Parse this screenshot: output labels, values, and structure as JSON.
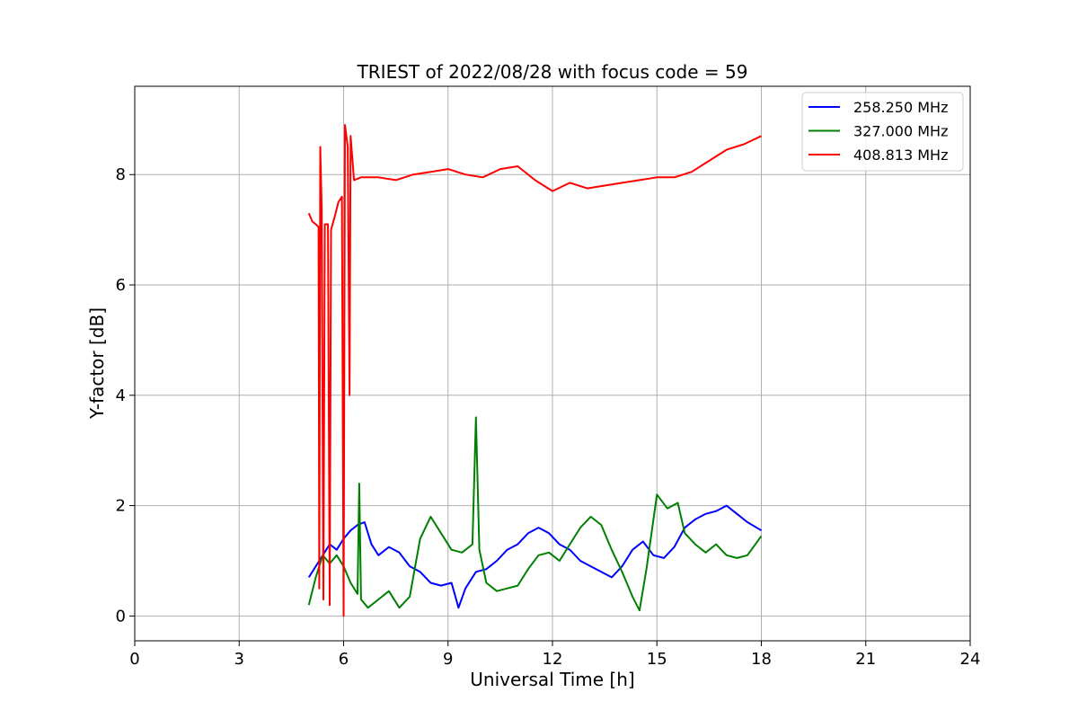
{
  "chart_data": {
    "type": "line",
    "title": "TRIEST of 2022/08/28 with focus code = 59",
    "xlabel": "Universal Time [h]",
    "ylabel": "Y-factor [dB]",
    "xlim": [
      0,
      24
    ],
    "ylim": [
      -0.45,
      9.6
    ],
    "xticks": [
      0,
      3,
      6,
      9,
      12,
      15,
      18,
      21,
      24
    ],
    "yticks": [
      0,
      2,
      4,
      6,
      8
    ],
    "grid": true,
    "legend_position": "top-right",
    "series": [
      {
        "name": "258.250 MHz",
        "color": "#0000ff",
        "points": [
          [
            5.0,
            0.7
          ],
          [
            5.2,
            0.9
          ],
          [
            5.4,
            1.1
          ],
          [
            5.6,
            1.3
          ],
          [
            5.8,
            1.2
          ],
          [
            6.0,
            1.4
          ],
          [
            6.2,
            1.55
          ],
          [
            6.4,
            1.65
          ],
          [
            6.6,
            1.7
          ],
          [
            6.8,
            1.3
          ],
          [
            7.0,
            1.1
          ],
          [
            7.3,
            1.25
          ],
          [
            7.6,
            1.15
          ],
          [
            7.9,
            0.9
          ],
          [
            8.2,
            0.8
          ],
          [
            8.5,
            0.6
          ],
          [
            8.8,
            0.55
          ],
          [
            9.1,
            0.6
          ],
          [
            9.3,
            0.15
          ],
          [
            9.5,
            0.5
          ],
          [
            9.8,
            0.8
          ],
          [
            10.1,
            0.85
          ],
          [
            10.4,
            1.0
          ],
          [
            10.7,
            1.2
          ],
          [
            11.0,
            1.3
          ],
          [
            11.3,
            1.5
          ],
          [
            11.6,
            1.6
          ],
          [
            11.9,
            1.5
          ],
          [
            12.2,
            1.3
          ],
          [
            12.5,
            1.2
          ],
          [
            12.8,
            1.0
          ],
          [
            13.1,
            0.9
          ],
          [
            13.4,
            0.8
          ],
          [
            13.7,
            0.7
          ],
          [
            14.0,
            0.9
          ],
          [
            14.3,
            1.2
          ],
          [
            14.6,
            1.35
          ],
          [
            14.9,
            1.1
          ],
          [
            15.2,
            1.05
          ],
          [
            15.5,
            1.25
          ],
          [
            15.8,
            1.6
          ],
          [
            16.1,
            1.75
          ],
          [
            16.4,
            1.85
          ],
          [
            16.7,
            1.9
          ],
          [
            17.0,
            2.0
          ],
          [
            17.3,
            1.85
          ],
          [
            17.6,
            1.7
          ],
          [
            18.0,
            1.55
          ]
        ]
      },
      {
        "name": "327.000 MHz",
        "color": "#008000",
        "points": [
          [
            5.0,
            0.2
          ],
          [
            5.2,
            0.7
          ],
          [
            5.4,
            1.1
          ],
          [
            5.6,
            0.95
          ],
          [
            5.8,
            1.1
          ],
          [
            6.0,
            0.9
          ],
          [
            6.2,
            0.6
          ],
          [
            6.4,
            0.4
          ],
          [
            6.45,
            2.4
          ],
          [
            6.5,
            0.3
          ],
          [
            6.7,
            0.15
          ],
          [
            7.0,
            0.3
          ],
          [
            7.3,
            0.45
          ],
          [
            7.6,
            0.15
          ],
          [
            7.9,
            0.35
          ],
          [
            8.2,
            1.4
          ],
          [
            8.5,
            1.8
          ],
          [
            8.8,
            1.5
          ],
          [
            9.1,
            1.2
          ],
          [
            9.4,
            1.15
          ],
          [
            9.7,
            1.3
          ],
          [
            9.8,
            3.6
          ],
          [
            9.9,
            1.2
          ],
          [
            10.1,
            0.6
          ],
          [
            10.4,
            0.45
          ],
          [
            10.7,
            0.5
          ],
          [
            11.0,
            0.55
          ],
          [
            11.3,
            0.85
          ],
          [
            11.6,
            1.1
          ],
          [
            11.9,
            1.15
          ],
          [
            12.2,
            1.0
          ],
          [
            12.5,
            1.3
          ],
          [
            12.8,
            1.6
          ],
          [
            13.1,
            1.8
          ],
          [
            13.4,
            1.65
          ],
          [
            13.7,
            1.2
          ],
          [
            14.0,
            0.8
          ],
          [
            14.3,
            0.35
          ],
          [
            14.5,
            0.1
          ],
          [
            14.7,
            0.85
          ],
          [
            15.0,
            2.2
          ],
          [
            15.3,
            1.95
          ],
          [
            15.6,
            2.05
          ],
          [
            15.8,
            1.5
          ],
          [
            16.1,
            1.3
          ],
          [
            16.4,
            1.15
          ],
          [
            16.7,
            1.3
          ],
          [
            17.0,
            1.1
          ],
          [
            17.3,
            1.05
          ],
          [
            17.6,
            1.1
          ],
          [
            18.0,
            1.45
          ]
        ]
      },
      {
        "name": "408.813 MHz",
        "color": "#ff0000",
        "points": [
          [
            5.0,
            7.3
          ],
          [
            5.1,
            7.15
          ],
          [
            5.2,
            7.1
          ],
          [
            5.28,
            7.05
          ],
          [
            5.3,
            0.5
          ],
          [
            5.33,
            8.5
          ],
          [
            5.37,
            7.4
          ],
          [
            5.42,
            0.3
          ],
          [
            5.46,
            7.1
          ],
          [
            5.55,
            7.1
          ],
          [
            5.6,
            0.2
          ],
          [
            5.64,
            7.0
          ],
          [
            5.75,
            7.25
          ],
          [
            5.85,
            7.5
          ],
          [
            5.95,
            7.6
          ],
          [
            6.0,
            0.0
          ],
          [
            6.04,
            8.9
          ],
          [
            6.12,
            8.5
          ],
          [
            6.17,
            4.0
          ],
          [
            6.2,
            8.7
          ],
          [
            6.3,
            7.9
          ],
          [
            6.5,
            7.95
          ],
          [
            7.0,
            7.95
          ],
          [
            7.5,
            7.9
          ],
          [
            8.0,
            8.0
          ],
          [
            8.5,
            8.05
          ],
          [
            9.0,
            8.1
          ],
          [
            9.5,
            8.0
          ],
          [
            10.0,
            7.95
          ],
          [
            10.5,
            8.1
          ],
          [
            11.0,
            8.15
          ],
          [
            11.5,
            7.9
          ],
          [
            12.0,
            7.7
          ],
          [
            12.5,
            7.85
          ],
          [
            13.0,
            7.75
          ],
          [
            13.5,
            7.8
          ],
          [
            14.0,
            7.85
          ],
          [
            14.5,
            7.9
          ],
          [
            15.0,
            7.95
          ],
          [
            15.5,
            7.95
          ],
          [
            16.0,
            8.05
          ],
          [
            16.5,
            8.25
          ],
          [
            17.0,
            8.45
          ],
          [
            17.5,
            8.55
          ],
          [
            18.0,
            8.7
          ]
        ]
      }
    ]
  }
}
